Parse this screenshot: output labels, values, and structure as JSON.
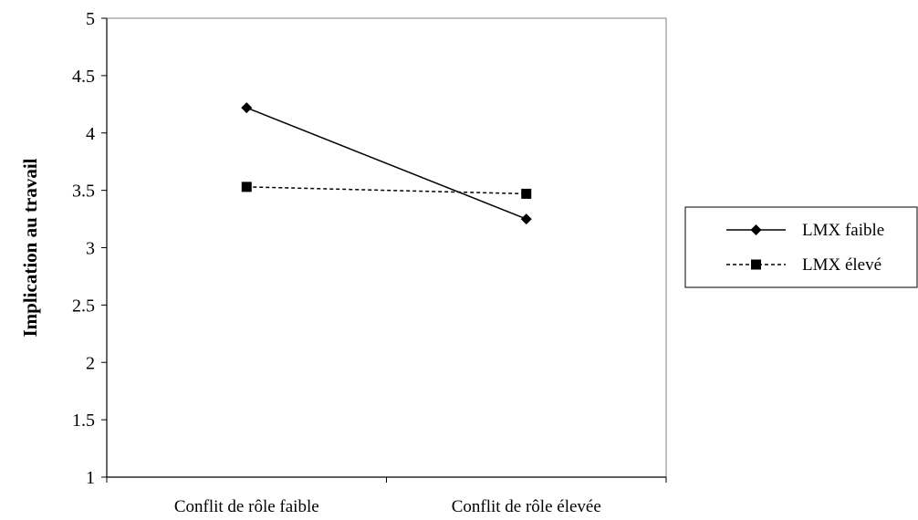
{
  "chart_data": {
    "type": "line",
    "title": "",
    "xlabel": "",
    "ylabel": "Implication au travail",
    "categories": [
      "Conflit de rôle faible",
      "Conflit de rôle élevée"
    ],
    "ylim": [
      1,
      5
    ],
    "yticks": [
      "1",
      "1.5",
      "2",
      "2.5",
      "3",
      "3.5",
      "4",
      "4.5",
      "5"
    ],
    "grid": false,
    "legend_position": "right",
    "series": [
      {
        "name": "LMX faible",
        "values": [
          4.22,
          3.25
        ],
        "line_style": "solid",
        "marker": "diamond",
        "color": "#000000"
      },
      {
        "name": "LMX élevé",
        "values": [
          3.53,
          3.47
        ],
        "line_style": "dashed",
        "marker": "square",
        "color": "#000000"
      }
    ]
  }
}
